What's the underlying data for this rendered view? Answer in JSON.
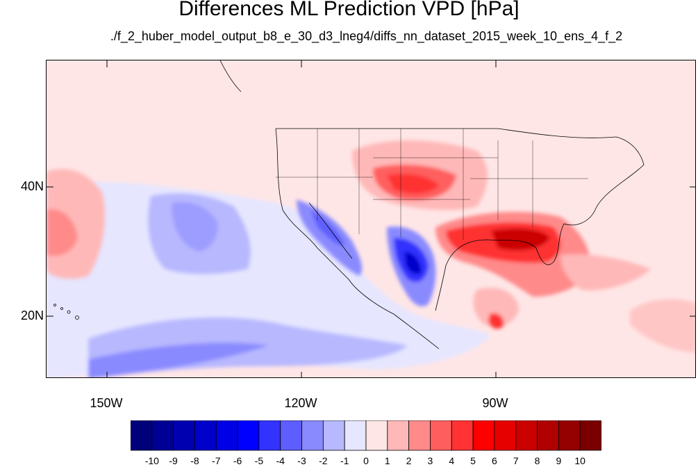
{
  "figure": {
    "title": "Differences ML Prediction VPD [hPa]",
    "subtitle": "./f_2_huber_model_output_b8_e_30_d3_lneg4/diffs_nn_dataset_2015_week_10_ens_4_f_2"
  },
  "axes": {
    "lat_ticks": [
      "40N",
      "20N"
    ],
    "lon_ticks": [
      "150W",
      "120W",
      "90W"
    ]
  },
  "colorbar": {
    "labels": [
      "-10",
      "-9",
      "-8",
      "-7",
      "-6",
      "-5",
      "-4",
      "-3",
      "-2",
      "-1",
      "0",
      "1",
      "2",
      "3",
      "4",
      "5",
      "6",
      "7",
      "8",
      "9",
      "10"
    ],
    "colors": [
      "#00007a",
      "#000095",
      "#0000b0",
      "#0000cb",
      "#0000e6",
      "#0000ff",
      "#3333ff",
      "#5e5eff",
      "#8a8aff",
      "#b8b8ff",
      "#e6e6ff",
      "#ffe6e6",
      "#ffb8b8",
      "#ff8a8a",
      "#ff5e5e",
      "#ff3333",
      "#ff0000",
      "#e60000",
      "#cb0000",
      "#b00000",
      "#950000",
      "#7a0000"
    ]
  }
}
